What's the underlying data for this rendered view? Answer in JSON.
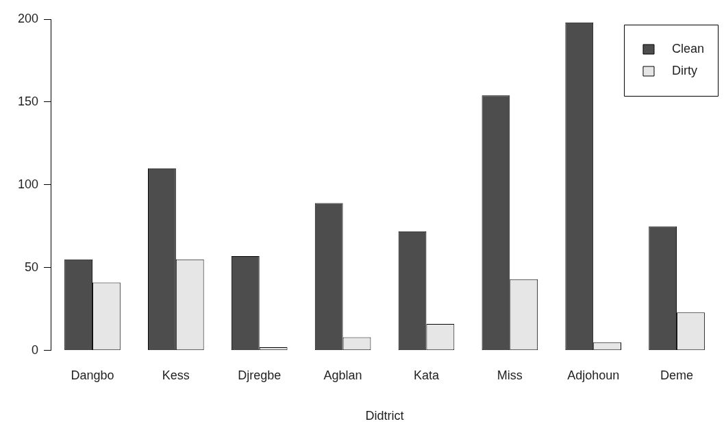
{
  "chart_data": {
    "type": "bar",
    "xlabel": "Didtrict",
    "categories": [
      "Dangbo",
      "Kess",
      "Djregbe",
      "Agblan",
      "Kata",
      "Miss",
      "Adjohoun",
      "Deme"
    ],
    "series": [
      {
        "name": "Clean",
        "color": "#4d4d4d",
        "values": [
          55,
          110,
          57,
          89,
          72,
          154,
          198,
          75
        ]
      },
      {
        "name": "Dirty",
        "color": "#e6e6e6",
        "values": [
          41,
          55,
          2,
          8,
          16,
          43,
          5,
          23
        ]
      }
    ],
    "ylim": [
      0,
      200
    ],
    "yticks": [
      0,
      50,
      100,
      150,
      200
    ],
    "grid": false,
    "legend": "top right"
  }
}
